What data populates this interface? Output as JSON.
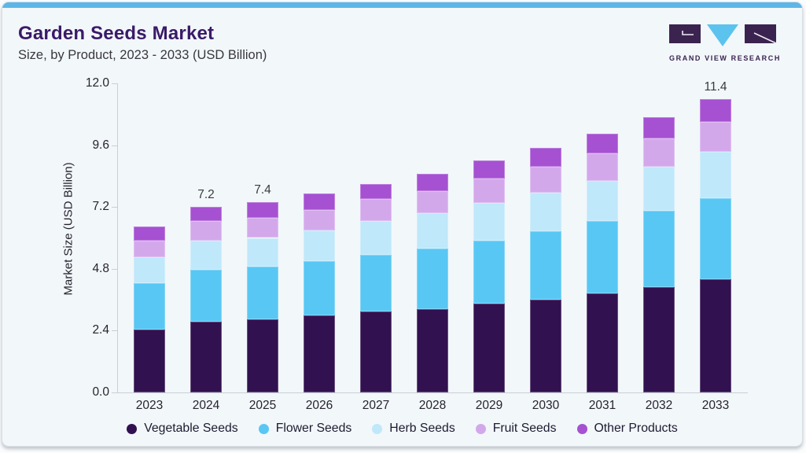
{
  "header": {
    "title": "Garden Seeds Market",
    "subtitle": "Size, by Product, 2023 - 2033 (USD Billion)",
    "logo_text": "GRAND VIEW RESEARCH"
  },
  "chart_data": {
    "type": "bar",
    "stacked": true,
    "title": "Garden Seeds Market Size, by Product, 2023 - 2033 (USD Billion)",
    "xlabel": "",
    "ylabel": "Market Size (USD Billion)",
    "ylim": [
      0,
      12
    ],
    "ytick_labels": [
      "0.0",
      "2.4",
      "4.8",
      "7.2",
      "9.6",
      "12.0"
    ],
    "grid": false,
    "legend_position": "bottom",
    "categories": [
      "2023",
      "2024",
      "2025",
      "2026",
      "2027",
      "2028",
      "2029",
      "2030",
      "2031",
      "2032",
      "2033"
    ],
    "series": [
      {
        "name": "Vegetable Seeds",
        "color": "#321150",
        "values": [
          2.45,
          2.75,
          2.85,
          3.0,
          3.15,
          3.25,
          3.45,
          3.6,
          3.85,
          4.1,
          4.4
        ]
      },
      {
        "name": "Flower Seeds",
        "color": "#58c7f4",
        "values": [
          1.8,
          2.0,
          2.05,
          2.1,
          2.2,
          2.35,
          2.45,
          2.65,
          2.8,
          2.95,
          3.15
        ]
      },
      {
        "name": "Herb Seeds",
        "color": "#bfe8fa",
        "values": [
          1.0,
          1.15,
          1.1,
          1.2,
          1.3,
          1.35,
          1.45,
          1.5,
          1.55,
          1.7,
          1.8
        ]
      },
      {
        "name": "Fruit Seeds",
        "color": "#d3a8eb",
        "values": [
          0.65,
          0.75,
          0.78,
          0.78,
          0.85,
          0.88,
          0.95,
          1.0,
          1.08,
          1.12,
          1.15
        ]
      },
      {
        "name": "Other Products",
        "color": "#a551d1",
        "values": [
          0.55,
          0.55,
          0.62,
          0.65,
          0.6,
          0.67,
          0.7,
          0.75,
          0.77,
          0.83,
          0.9
        ]
      }
    ],
    "bar_total_labels": {
      "2024": "7.2",
      "2025": "7.4",
      "2033": "11.4"
    }
  },
  "colors": {
    "accent_bar": "#5eb6e7",
    "card_background": "#f2f7fa",
    "title": "#3a1a68",
    "axis": "#c9cfd6",
    "logo_purple": "#3b2350",
    "logo_cyan": "#5bc3ee"
  }
}
